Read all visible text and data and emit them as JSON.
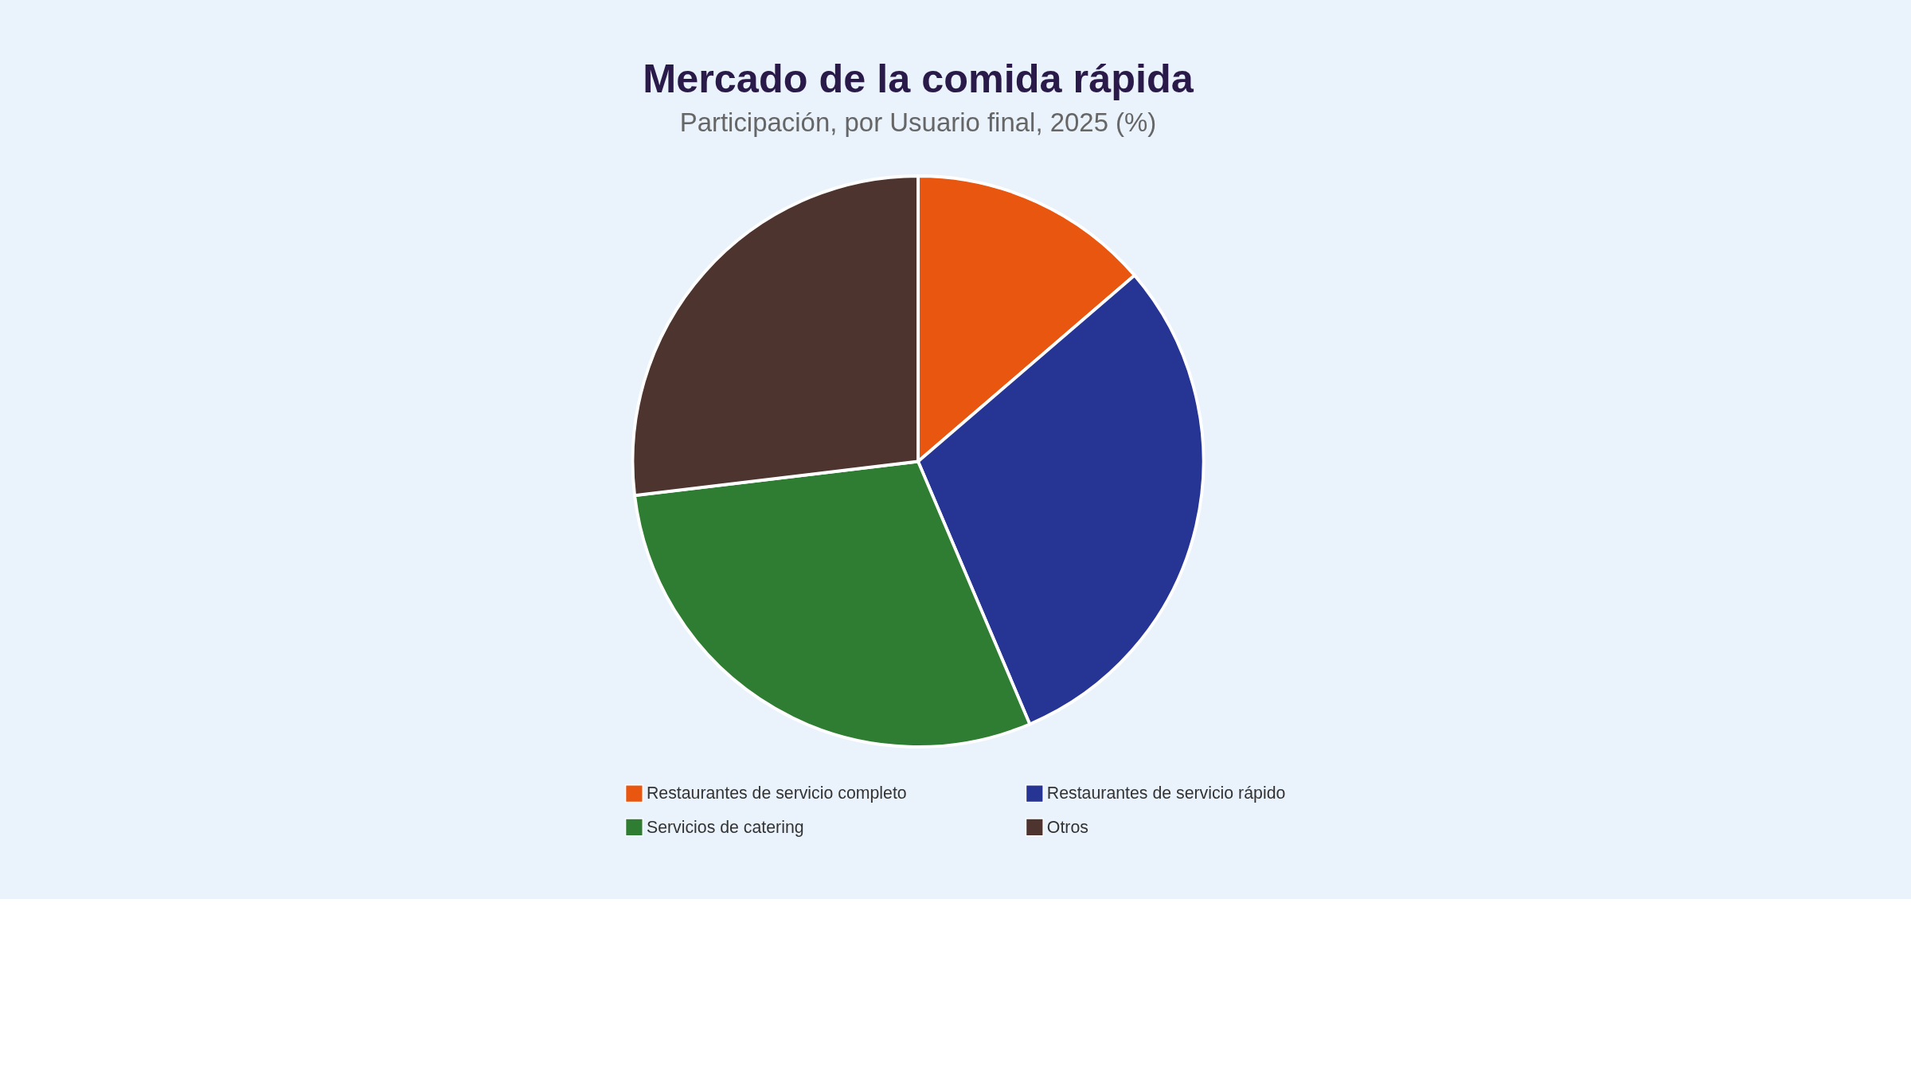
{
  "chart_data": {
    "type": "pie",
    "title": "Mercado de la comida rápida",
    "subtitle": "Participación, por Usuario final, 2025 (%)",
    "categories": [
      "Restaurantes de servicio completo",
      "Restaurantes de servicio rápido",
      "Servicios de catering",
      "Otros"
    ],
    "values": [
      13.7,
      29.9,
      29.5,
      26.9
    ],
    "colors": [
      "#e8560f",
      "#263593",
      "#2e7d32",
      "#4e342e"
    ],
    "legend": "bottom"
  }
}
